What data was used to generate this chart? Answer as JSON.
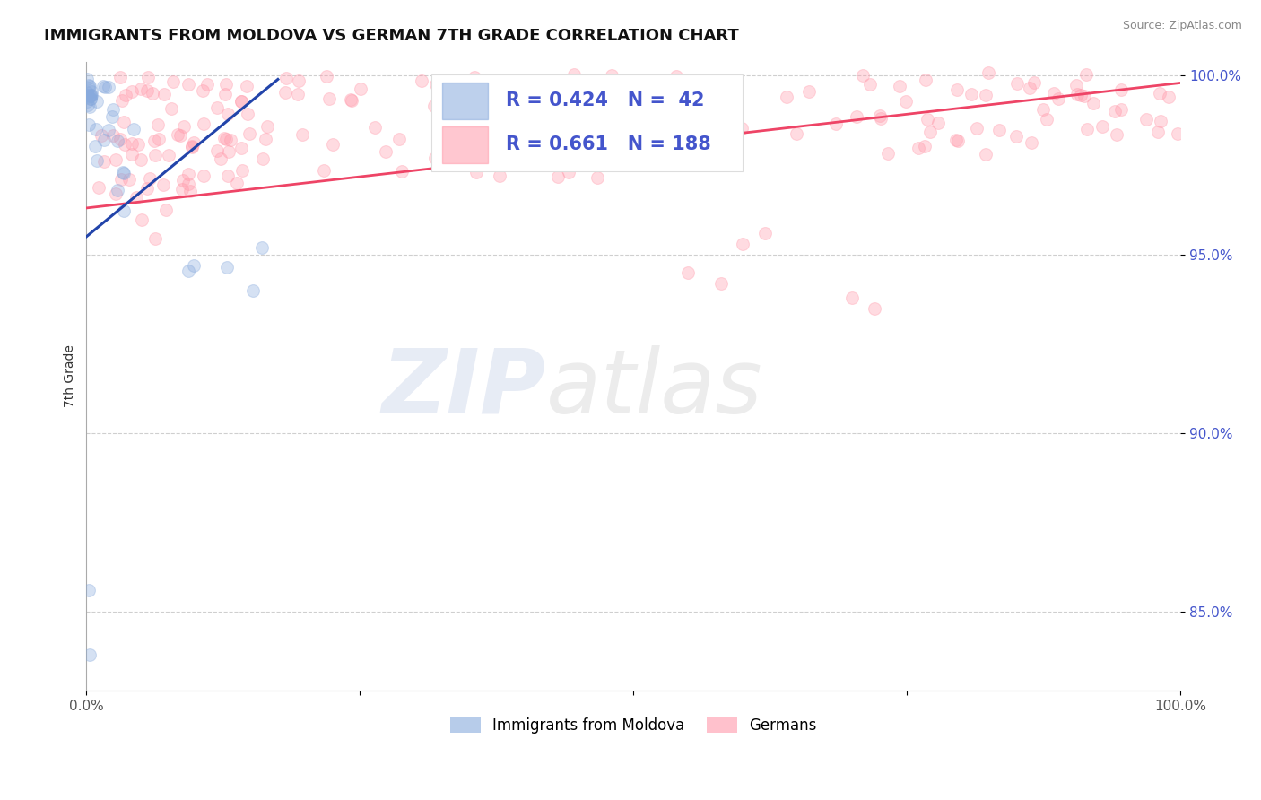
{
  "title": "IMMIGRANTS FROM MOLDOVA VS GERMAN 7TH GRADE CORRELATION CHART",
  "source_text": "Source: ZipAtlas.com",
  "ylabel": "7th Grade",
  "watermark_zip": "ZIP",
  "watermark_atlas": "atlas",
  "blue_label": "Immigrants from Moldova",
  "pink_label": "Germans",
  "blue_R": 0.424,
  "blue_N": 42,
  "pink_R": 0.661,
  "pink_N": 188,
  "blue_color": "#88aadd",
  "pink_color": "#ff99aa",
  "blue_line_color": "#2244aa",
  "pink_line_color": "#ee4466",
  "text_color": "#4455cc",
  "xlim": [
    0.0,
    1.0
  ],
  "ylim": [
    0.828,
    1.004
  ],
  "yticks": [
    0.85,
    0.9,
    0.95,
    1.0
  ],
  "ytick_labels": [
    "85.0%",
    "90.0%",
    "95.0%",
    "100.0%"
  ],
  "background_color": "#ffffff",
  "grid_color": "#bbbbbb",
  "title_fontsize": 13,
  "axis_label_fontsize": 10,
  "tick_fontsize": 11,
  "legend_fontsize": 15,
  "marker_size": 100,
  "marker_alpha": 0.35
}
